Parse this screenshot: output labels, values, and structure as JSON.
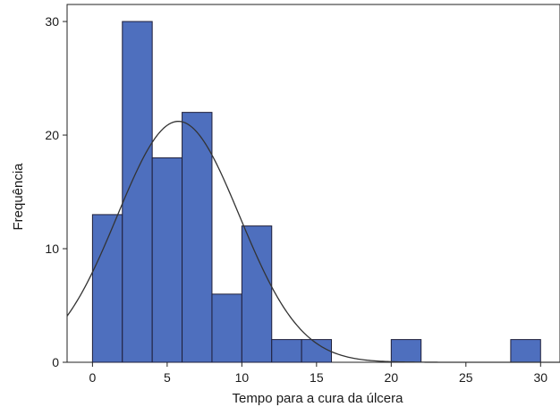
{
  "chart_data": {
    "type": "bar",
    "subtype": "histogram",
    "xlabel": "Tempo para a cura da úlcera",
    "ylabel": "Frequência",
    "xlim": [
      -1.7,
      31.3
    ],
    "ylim": [
      0,
      31.5
    ],
    "xticks": [
      0,
      5,
      10,
      15,
      20,
      25,
      30
    ],
    "yticks": [
      0,
      10,
      20,
      30
    ],
    "grid": false,
    "bar_color": "#4e6fbe",
    "bar_edge_color": "#1f1f3a",
    "curve_color": "#333333",
    "bins": [
      {
        "x0": 0,
        "x1": 2,
        "value": 13
      },
      {
        "x0": 2,
        "x1": 4,
        "value": 30
      },
      {
        "x0": 4,
        "x1": 6,
        "value": 18
      },
      {
        "x0": 6,
        "x1": 8,
        "value": 22
      },
      {
        "x0": 8,
        "x1": 10,
        "value": 6
      },
      {
        "x0": 10,
        "x1": 12,
        "value": 12
      },
      {
        "x0": 12,
        "x1": 14,
        "value": 2
      },
      {
        "x0": 14,
        "x1": 16,
        "value": 2
      },
      {
        "x0": 20,
        "x1": 22,
        "value": 2
      },
      {
        "x0": 28,
        "x1": 30,
        "value": 2
      }
    ],
    "normal_curve": {
      "mean": 5.75,
      "sd": 4.1,
      "n": 109,
      "bin_width": 2
    }
  }
}
